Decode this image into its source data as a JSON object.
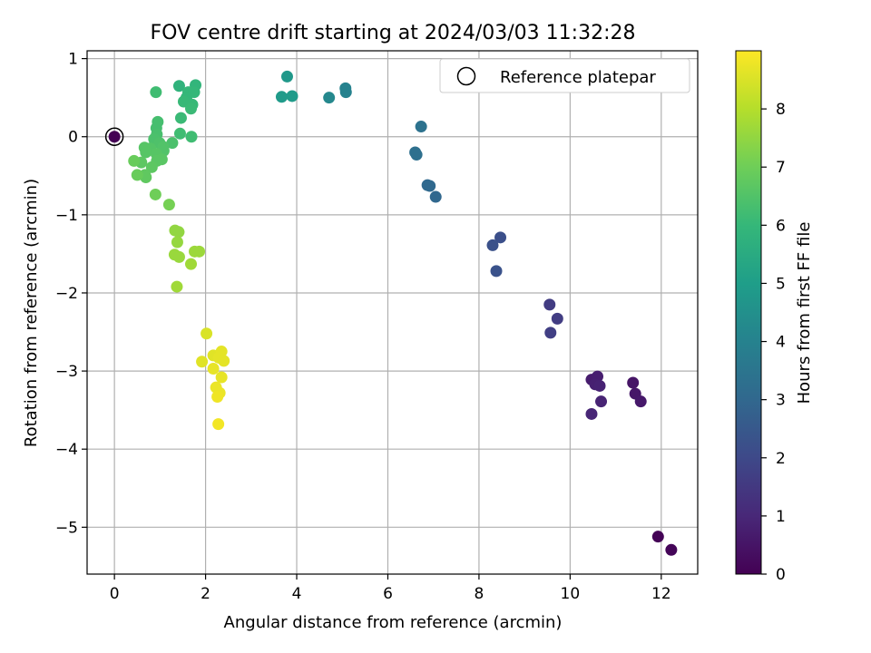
{
  "chart_data": {
    "type": "scatter",
    "title": "FOV centre drift starting at 2024/03/03 11:32:28",
    "xlabel": "Angular distance from reference (arcmin)",
    "ylabel": "Rotation from reference (arcmin)",
    "xlim": [
      -0.6,
      12.8
    ],
    "ylim": [
      -5.6,
      1.1
    ],
    "xticks": [
      0,
      2,
      4,
      6,
      8,
      10,
      12
    ],
    "xtick_labels": [
      "0",
      "2",
      "4",
      "6",
      "8",
      "10",
      "12"
    ],
    "yticks": [
      1,
      0,
      -1,
      -2,
      -3,
      -4,
      -5
    ],
    "ytick_labels": [
      "1",
      "0",
      "−1",
      "−2",
      "−3",
      "−4",
      "−5"
    ],
    "grid": true,
    "legend": {
      "label": "Reference platepar",
      "placement": "top-right"
    },
    "reference_point": {
      "x": 0,
      "y": 0,
      "c": 0
    },
    "colorbar": {
      "label": "Hours from first FF file",
      "colormap": "viridis",
      "range": [
        0,
        9
      ],
      "ticks": [
        0,
        1,
        2,
        3,
        4,
        5,
        6,
        7,
        8
      ],
      "tick_labels": [
        "0",
        "1",
        "2",
        "3",
        "4",
        "5",
        "6",
        "7",
        "8"
      ]
    },
    "colormap_stops": [
      "#440154",
      "#482878",
      "#3e4989",
      "#31688e",
      "#26828e",
      "#1f9e89",
      "#35b779",
      "#6ece58",
      "#b5de2b",
      "#fde725"
    ],
    "points": [
      {
        "x": 11.93,
        "y": -5.12,
        "c": 0.05
      },
      {
        "x": 12.22,
        "y": -5.29,
        "c": 0.1
      },
      {
        "x": 11.38,
        "y": -3.15,
        "c": 0.5
      },
      {
        "x": 11.43,
        "y": -3.29,
        "c": 0.55
      },
      {
        "x": 11.55,
        "y": -3.39,
        "c": 0.6
      },
      {
        "x": 10.47,
        "y": -3.11,
        "c": 0.7
      },
      {
        "x": 10.6,
        "y": -3.07,
        "c": 0.75
      },
      {
        "x": 10.55,
        "y": -3.17,
        "c": 0.8
      },
      {
        "x": 10.65,
        "y": -3.19,
        "c": 0.85
      },
      {
        "x": 10.68,
        "y": -3.39,
        "c": 0.9
      },
      {
        "x": 10.47,
        "y": -3.55,
        "c": 0.95
      },
      {
        "x": 9.55,
        "y": -2.15,
        "c": 1.6
      },
      {
        "x": 9.72,
        "y": -2.33,
        "c": 1.65
      },
      {
        "x": 9.57,
        "y": -2.51,
        "c": 1.7
      },
      {
        "x": 8.47,
        "y": -1.29,
        "c": 2.2
      },
      {
        "x": 8.3,
        "y": -1.39,
        "c": 2.25
      },
      {
        "x": 8.38,
        "y": -1.72,
        "c": 2.3
      },
      {
        "x": 7.05,
        "y": -0.77,
        "c": 3.0
      },
      {
        "x": 6.87,
        "y": -0.62,
        "c": 3.05
      },
      {
        "x": 6.92,
        "y": -0.63,
        "c": 3.05
      },
      {
        "x": 6.6,
        "y": -0.2,
        "c": 3.3
      },
      {
        "x": 6.63,
        "y": -0.23,
        "c": 3.3
      },
      {
        "x": 6.73,
        "y": 0.13,
        "c": 3.4
      },
      {
        "x": 5.07,
        "y": 0.62,
        "c": 4.0
      },
      {
        "x": 5.08,
        "y": 0.57,
        "c": 4.0
      },
      {
        "x": 4.71,
        "y": 0.5,
        "c": 4.2
      },
      {
        "x": 3.79,
        "y": 0.77,
        "c": 4.8
      },
      {
        "x": 3.67,
        "y": 0.51,
        "c": 4.9
      },
      {
        "x": 3.9,
        "y": 0.52,
        "c": 4.9
      },
      {
        "x": 1.42,
        "y": 0.65,
        "c": 5.8
      },
      {
        "x": 1.78,
        "y": 0.66,
        "c": 5.9
      },
      {
        "x": 1.62,
        "y": 0.57,
        "c": 6.0
      },
      {
        "x": 1.75,
        "y": 0.57,
        "c": 6.0
      },
      {
        "x": 1.58,
        "y": 0.5,
        "c": 6.0
      },
      {
        "x": 1.52,
        "y": 0.45,
        "c": 6.05
      },
      {
        "x": 1.71,
        "y": 0.41,
        "c": 6.05
      },
      {
        "x": 1.68,
        "y": 0.36,
        "c": 6.1
      },
      {
        "x": 1.46,
        "y": 0.24,
        "c": 6.1
      },
      {
        "x": 0.91,
        "y": 0.57,
        "c": 6.2
      },
      {
        "x": 1.44,
        "y": 0.04,
        "c": 6.2
      },
      {
        "x": 1.69,
        "y": 0.0,
        "c": 6.2
      },
      {
        "x": 0.95,
        "y": 0.19,
        "c": 6.3
      },
      {
        "x": 0.92,
        "y": 0.11,
        "c": 6.3
      },
      {
        "x": 0.93,
        "y": 0.03,
        "c": 6.35
      },
      {
        "x": 0.87,
        "y": -0.03,
        "c": 6.4
      },
      {
        "x": 1.27,
        "y": -0.08,
        "c": 6.4
      },
      {
        "x": 0.99,
        "y": -0.08,
        "c": 6.45
      },
      {
        "x": 1.07,
        "y": -0.13,
        "c": 6.5
      },
      {
        "x": 1.08,
        "y": -0.18,
        "c": 6.5
      },
      {
        "x": 0.79,
        "y": -0.15,
        "c": 6.55
      },
      {
        "x": 0.92,
        "y": -0.22,
        "c": 6.6
      },
      {
        "x": 0.66,
        "y": -0.14,
        "c": 6.6
      },
      {
        "x": 0.69,
        "y": -0.2,
        "c": 6.6
      },
      {
        "x": 1.04,
        "y": -0.29,
        "c": 6.65
      },
      {
        "x": 0.93,
        "y": -0.31,
        "c": 6.65
      },
      {
        "x": 0.59,
        "y": -0.33,
        "c": 6.7
      },
      {
        "x": 0.82,
        "y": -0.39,
        "c": 6.7
      },
      {
        "x": 0.67,
        "y": -0.49,
        "c": 6.75
      },
      {
        "x": 0.69,
        "y": -0.52,
        "c": 6.75
      },
      {
        "x": 0.43,
        "y": -0.31,
        "c": 6.9
      },
      {
        "x": 0.5,
        "y": -0.49,
        "c": 6.9
      },
      {
        "x": 0.9,
        "y": -0.74,
        "c": 7.0
      },
      {
        "x": 1.2,
        "y": -0.87,
        "c": 7.1
      },
      {
        "x": 1.33,
        "y": -1.2,
        "c": 7.5
      },
      {
        "x": 1.41,
        "y": -1.22,
        "c": 7.5
      },
      {
        "x": 1.38,
        "y": -1.35,
        "c": 7.55
      },
      {
        "x": 1.32,
        "y": -1.51,
        "c": 7.6
      },
      {
        "x": 1.42,
        "y": -1.54,
        "c": 7.6
      },
      {
        "x": 1.76,
        "y": -1.47,
        "c": 7.65
      },
      {
        "x": 1.86,
        "y": -1.47,
        "c": 7.65
      },
      {
        "x": 1.68,
        "y": -1.63,
        "c": 7.7
      },
      {
        "x": 1.37,
        "y": -1.92,
        "c": 7.7
      },
      {
        "x": 2.02,
        "y": -2.52,
        "c": 8.5
      },
      {
        "x": 1.92,
        "y": -2.88,
        "c": 8.6
      },
      {
        "x": 2.17,
        "y": -2.8,
        "c": 8.6
      },
      {
        "x": 2.35,
        "y": -2.75,
        "c": 8.65
      },
      {
        "x": 2.29,
        "y": -2.83,
        "c": 8.65
      },
      {
        "x": 2.4,
        "y": -2.87,
        "c": 8.65
      },
      {
        "x": 2.17,
        "y": -2.97,
        "c": 8.7
      },
      {
        "x": 2.35,
        "y": -3.08,
        "c": 8.7
      },
      {
        "x": 2.23,
        "y": -3.21,
        "c": 8.75
      },
      {
        "x": 2.31,
        "y": -3.28,
        "c": 8.75
      },
      {
        "x": 2.26,
        "y": -3.33,
        "c": 8.8
      },
      {
        "x": 2.28,
        "y": -3.68,
        "c": 8.85
      }
    ]
  }
}
